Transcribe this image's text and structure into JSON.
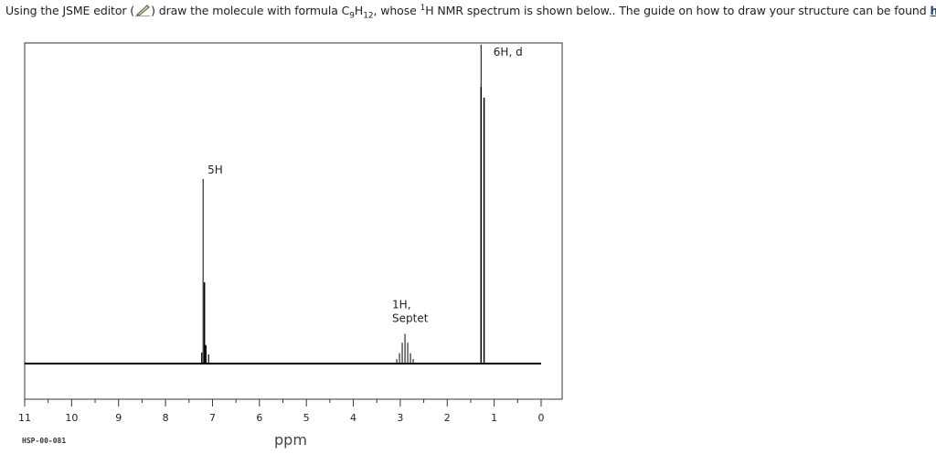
{
  "question": {
    "prefix": "Using the JSME editor (",
    "mid1": ") draw the molecule with formula C",
    "sub1": "9",
    "mid2": "H",
    "sub2": "12",
    "mid3": ", whose ",
    "sup1": "1",
    "mid4": "H NMR spectrum is shown below.. The guide on how to draw your structure can be found ",
    "link": "here",
    "suffix": "."
  },
  "icons": {
    "editor": "pencil-icon"
  },
  "footer_code": "HSP-00-081",
  "chart_data": {
    "type": "line",
    "xlabel": "ppm",
    "xlim": [
      11,
      0
    ],
    "x_ticks": [
      "11",
      "10",
      "9",
      "8",
      "7",
      "6",
      "5",
      "4",
      "3",
      "2",
      "1",
      "0"
    ],
    "grid": false,
    "line_color": "#000000",
    "peaks": [
      {
        "shift": 7.2,
        "height": 0.62,
        "label": "5H"
      },
      {
        "shift": 2.9,
        "height": 0.1,
        "label": "1H,\nSeptet"
      },
      {
        "shift": 1.25,
        "height": 0.93,
        "label": "6H, d"
      }
    ]
  }
}
